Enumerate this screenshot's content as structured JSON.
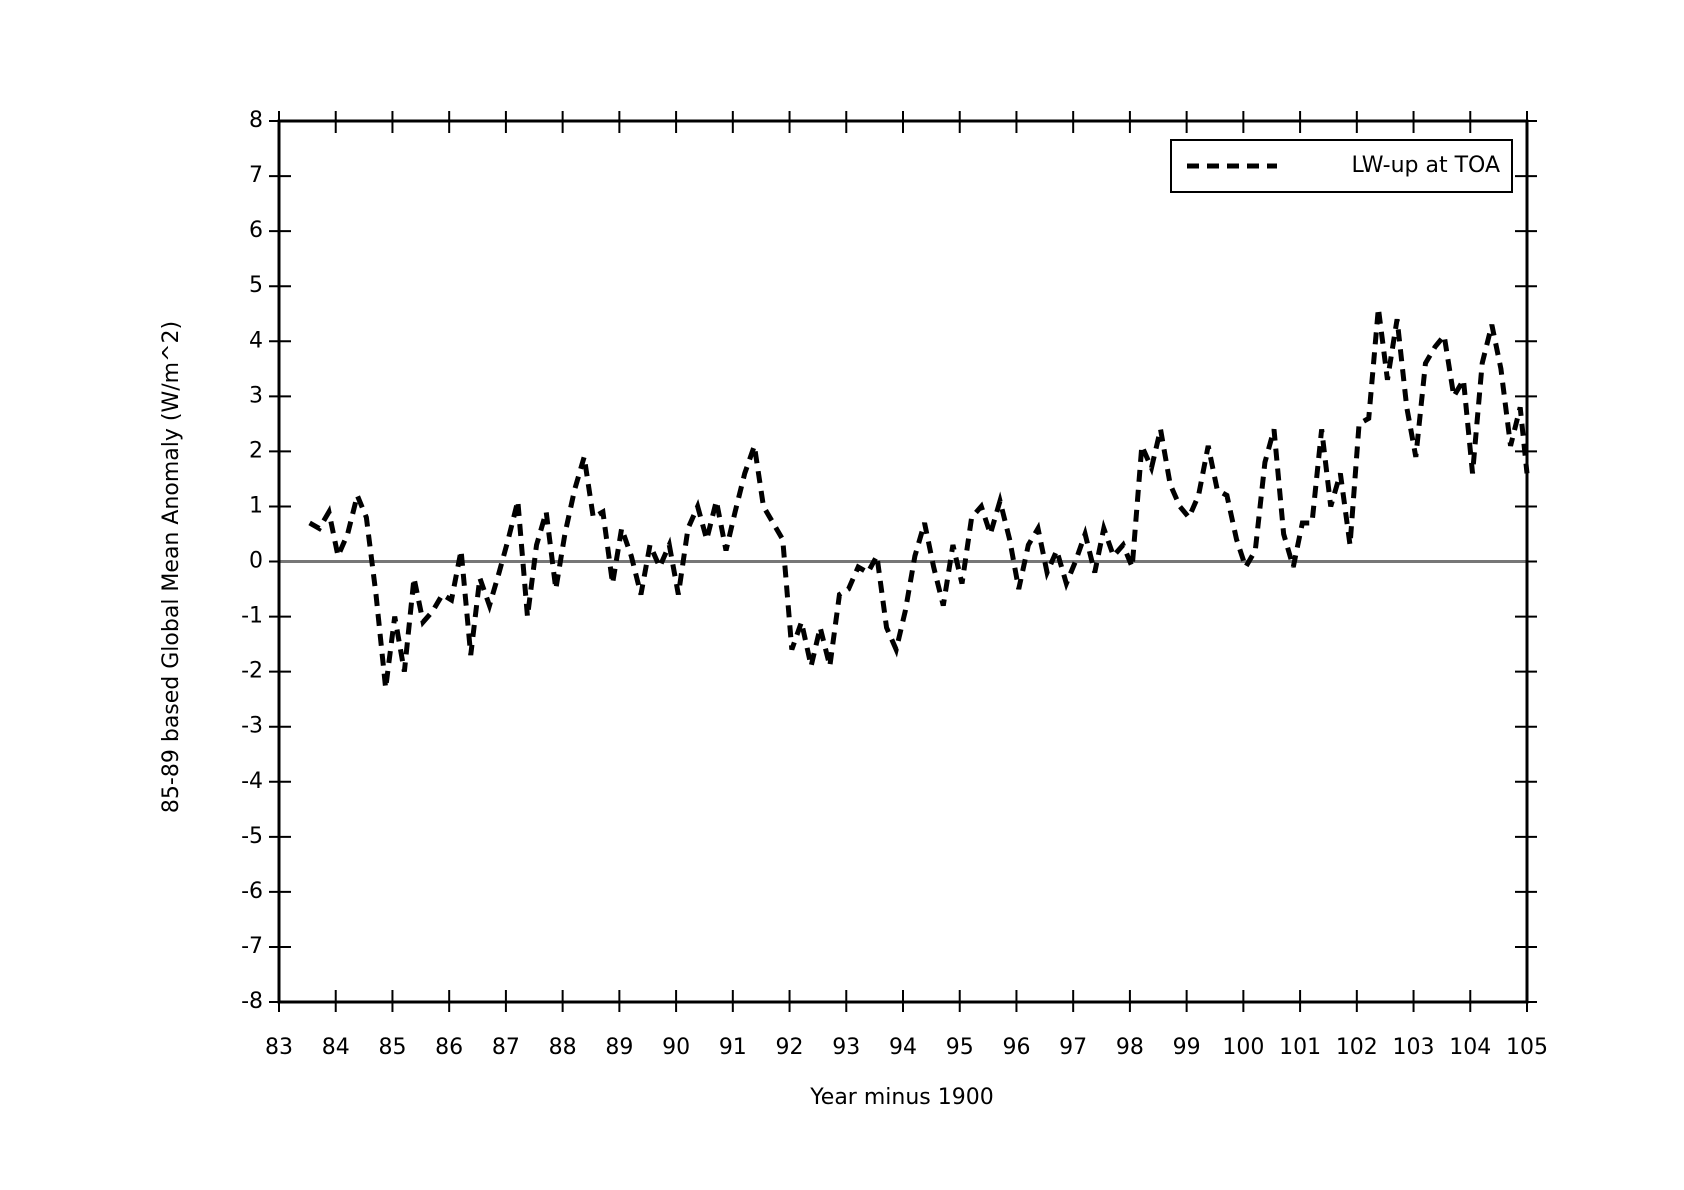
{
  "chart_data": {
    "type": "line",
    "xlabel": "Year minus 1900",
    "ylabel": "85-89 based Global Mean Anomaly  (W/m^2)",
    "xlim": [
      83,
      105
    ],
    "ylim": [
      -8,
      8
    ],
    "xticks": [
      83,
      84,
      85,
      86,
      87,
      88,
      89,
      90,
      91,
      92,
      93,
      94,
      95,
      96,
      97,
      98,
      99,
      100,
      101,
      102,
      103,
      104,
      105
    ],
    "yticks": [
      -8,
      -7,
      -6,
      -5,
      -4,
      -3,
      -2,
      -1,
      0,
      1,
      2,
      3,
      4,
      5,
      6,
      7,
      8
    ],
    "reference_line": 0,
    "legend": "upper right",
    "x": [
      83.54,
      83.71,
      83.88,
      84.04,
      84.21,
      84.38,
      84.54,
      84.71,
      84.88,
      85.04,
      85.21,
      85.38,
      85.54,
      85.71,
      85.88,
      86.04,
      86.21,
      86.38,
      86.54,
      86.71,
      86.88,
      87.04,
      87.21,
      87.38,
      87.54,
      87.71,
      87.88,
      88.04,
      88.21,
      88.38,
      88.54,
      88.71,
      88.88,
      89.04,
      89.21,
      89.38,
      89.54,
      89.71,
      89.88,
      90.04,
      90.21,
      90.38,
      90.54,
      90.71,
      90.88,
      91.04,
      91.21,
      91.38,
      91.54,
      91.71,
      91.88,
      92.04,
      92.21,
      92.38,
      92.54,
      92.71,
      92.88,
      93.04,
      93.21,
      93.38,
      93.54,
      93.71,
      93.88,
      94.04,
      94.21,
      94.38,
      94.54,
      94.71,
      94.88,
      95.04,
      95.21,
      95.38,
      95.54,
      95.71,
      95.88,
      96.04,
      96.21,
      96.38,
      96.54,
      96.71,
      96.88,
      97.04,
      97.21,
      97.38,
      97.54,
      97.71,
      97.88,
      98.04,
      98.21,
      98.38,
      98.54,
      98.71,
      98.88,
      99.04,
      99.21,
      99.38,
      99.54,
      99.71,
      99.88,
      100.04,
      100.21,
      100.38,
      100.54,
      100.71,
      100.88,
      101.04,
      101.21,
      101.38,
      101.54,
      101.71,
      101.88,
      102.04,
      102.21,
      102.38,
      102.54,
      102.71,
      102.88,
      103.04,
      103.21,
      103.38,
      103.54,
      103.71,
      103.88,
      104.04,
      104.21,
      104.38,
      104.54,
      104.71,
      104.88,
      105.0
    ],
    "series": [
      {
        "name": "LW-up at TOA",
        "color": "#000000",
        "dash": true,
        "values": [
          0.7,
          0.6,
          0.9,
          0.1,
          0.5,
          1.2,
          0.8,
          -0.6,
          -2.3,
          -1.0,
          -2.0,
          -0.3,
          -1.1,
          -0.9,
          -0.6,
          -0.7,
          0.2,
          -1.7,
          -0.3,
          -0.8,
          -0.2,
          0.4,
          1.1,
          -1.0,
          0.3,
          0.9,
          -0.5,
          0.5,
          1.3,
          1.9,
          0.8,
          0.9,
          -0.4,
          0.6,
          0.1,
          -0.6,
          0.3,
          -0.1,
          0.3,
          -0.6,
          0.6,
          1.0,
          0.4,
          1.1,
          0.2,
          0.9,
          1.6,
          2.1,
          1.0,
          0.7,
          0.4,
          -1.6,
          -1.1,
          -1.9,
          -1.2,
          -1.9,
          -0.6,
          -0.5,
          -0.1,
          -0.2,
          0.1,
          -1.2,
          -1.6,
          -0.9,
          0.1,
          0.7,
          -0.1,
          -0.8,
          0.3,
          -0.4,
          0.8,
          1.0,
          0.5,
          1.1,
          0.4,
          -0.5,
          0.3,
          0.6,
          -0.2,
          0.2,
          -0.4,
          0.0,
          0.5,
          -0.2,
          0.6,
          0.1,
          0.3,
          -0.1,
          2.1,
          1.7,
          2.4,
          1.4,
          1.0,
          0.8,
          1.2,
          2.1,
          1.3,
          1.2,
          0.4,
          -0.1,
          0.2,
          1.8,
          2.4,
          0.5,
          -0.1,
          0.7,
          0.7,
          2.4,
          1.0,
          1.6,
          0.3,
          2.5,
          2.6,
          4.6,
          3.3,
          4.4,
          2.8,
          1.9,
          3.6,
          3.9,
          4.1,
          3.0,
          3.3,
          1.6,
          3.6,
          4.3,
          3.5,
          2.1,
          2.8,
          1.6
        ]
      }
    ]
  }
}
